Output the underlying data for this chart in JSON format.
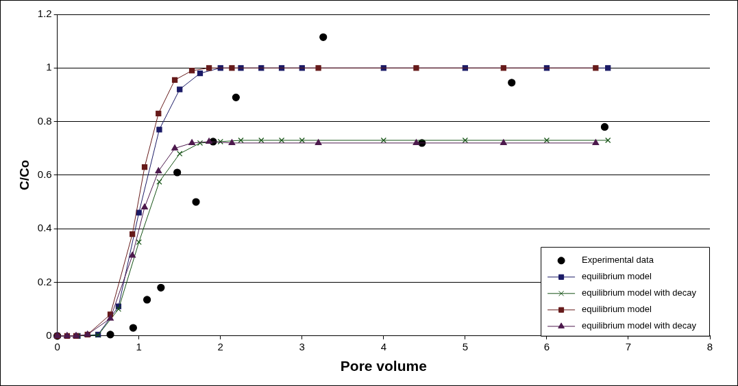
{
  "chart_data": {
    "type": "scatter",
    "xlabel": "Pore volume",
    "ylabel": "C/Co",
    "xlim": [
      0,
      8
    ],
    "xticks": [
      0,
      1,
      2,
      3,
      4,
      5,
      6,
      7,
      8
    ],
    "ylim": [
      0,
      1.2
    ],
    "yticks": [
      0,
      0.2,
      0.4,
      0.6,
      0.8,
      1,
      1.2
    ],
    "grid": "y",
    "legend": "bottom right",
    "series": [
      {
        "name": "Experimental data",
        "marker": "circle",
        "color": "#000000",
        "x": [
          0,
          0.65,
          0.93,
          1.1,
          1.27,
          1.47,
          1.7,
          1.91,
          2.19,
          3.26,
          4.47,
          5.57,
          6.71
        ],
        "values": [
          0,
          0.005,
          0.03,
          0.135,
          0.18,
          0.61,
          0.5,
          0.725,
          0.89,
          1.115,
          0.72,
          0.945,
          0.78
        ]
      },
      {
        "name": "equilibrium model",
        "type": "line",
        "marker": "square",
        "color": "#1a1a66",
        "x": [
          0,
          0.25,
          0.5,
          0.75,
          1,
          1.25,
          1.5,
          1.75,
          2,
          2.25,
          2.5,
          2.75,
          3,
          4,
          5,
          6,
          6.75
        ],
        "values": [
          0,
          0,
          0.005,
          0.11,
          0.46,
          0.77,
          0.92,
          0.98,
          1,
          1,
          1,
          1,
          1,
          1,
          1,
          1,
          1
        ]
      },
      {
        "name": "equilibrium model with decay",
        "type": "line",
        "marker": "cross",
        "color": "#145214",
        "x": [
          0,
          0.25,
          0.5,
          0.75,
          1,
          1.25,
          1.5,
          1.75,
          2,
          2.25,
          2.5,
          2.75,
          3,
          4,
          5,
          6,
          6.75
        ],
        "values": [
          0,
          0,
          0.003,
          0.1,
          0.35,
          0.575,
          0.68,
          0.72,
          0.725,
          0.73,
          0.73,
          0.73,
          0.73,
          0.73,
          0.73,
          0.73,
          0.73
        ]
      },
      {
        "name": "equilibrium model",
        "type": "line",
        "marker": "square",
        "color": "#661a1a",
        "x": [
          0,
          0.12,
          0.23,
          0.37,
          0.65,
          0.92,
          1.07,
          1.24,
          1.44,
          1.65,
          1.86,
          2.14,
          3.2,
          4.4,
          5.47,
          6.6
        ],
        "values": [
          0,
          0,
          0,
          0.005,
          0.08,
          0.38,
          0.63,
          0.83,
          0.955,
          0.99,
          1,
          1,
          1,
          1,
          1,
          1
        ]
      },
      {
        "name": "equilibrium model with decay",
        "type": "line",
        "marker": "triangle",
        "color": "#4d1a4d",
        "x": [
          0,
          0.12,
          0.23,
          0.37,
          0.65,
          0.92,
          1.07,
          1.24,
          1.44,
          1.65,
          1.86,
          2.14,
          3.2,
          4.4,
          5.47,
          6.6
        ],
        "values": [
          0,
          0,
          0,
          0.005,
          0.065,
          0.3,
          0.48,
          0.615,
          0.7,
          0.72,
          0.725,
          0.72,
          0.72,
          0.72,
          0.72,
          0.72
        ]
      }
    ]
  }
}
